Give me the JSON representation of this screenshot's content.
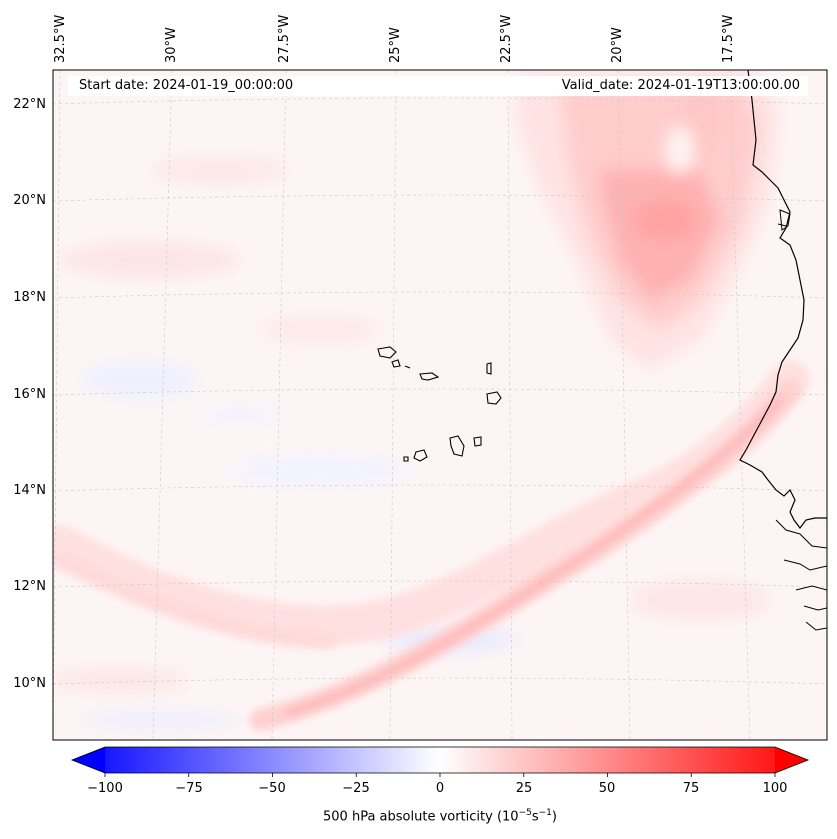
{
  "header": {
    "start_date": "Start date: 2024-01-19_00:00:00",
    "valid_date": "Valid_date: 2024-01-19T13:00:00.00"
  },
  "longitude_labels": [
    "32.5°W",
    "30°W",
    "27.5°W",
    "25°W",
    "22.5°W",
    "20°W",
    "17.5°W"
  ],
  "latitude_labels": [
    "22°N",
    "20°N",
    "18°N",
    "16°N",
    "14°N",
    "12°N",
    "10°N"
  ],
  "colorbar": {
    "ticks": [
      "−100",
      "−75",
      "−50",
      "−25",
      "0",
      "25",
      "50",
      "75",
      "100"
    ],
    "label_prefix": "500 hPa absolute vorticity (10",
    "label_exp1": "−5",
    "label_mid": "s",
    "label_exp2": "−1",
    "label_suffix": ")",
    "range": [
      -100,
      100
    ],
    "negative_color": "#0000ff",
    "positive_color": "#ff0000",
    "neutral_color": "#ffffff"
  },
  "colors": {
    "coastline": "#000000",
    "background_tint": "#fdf6f6"
  }
}
